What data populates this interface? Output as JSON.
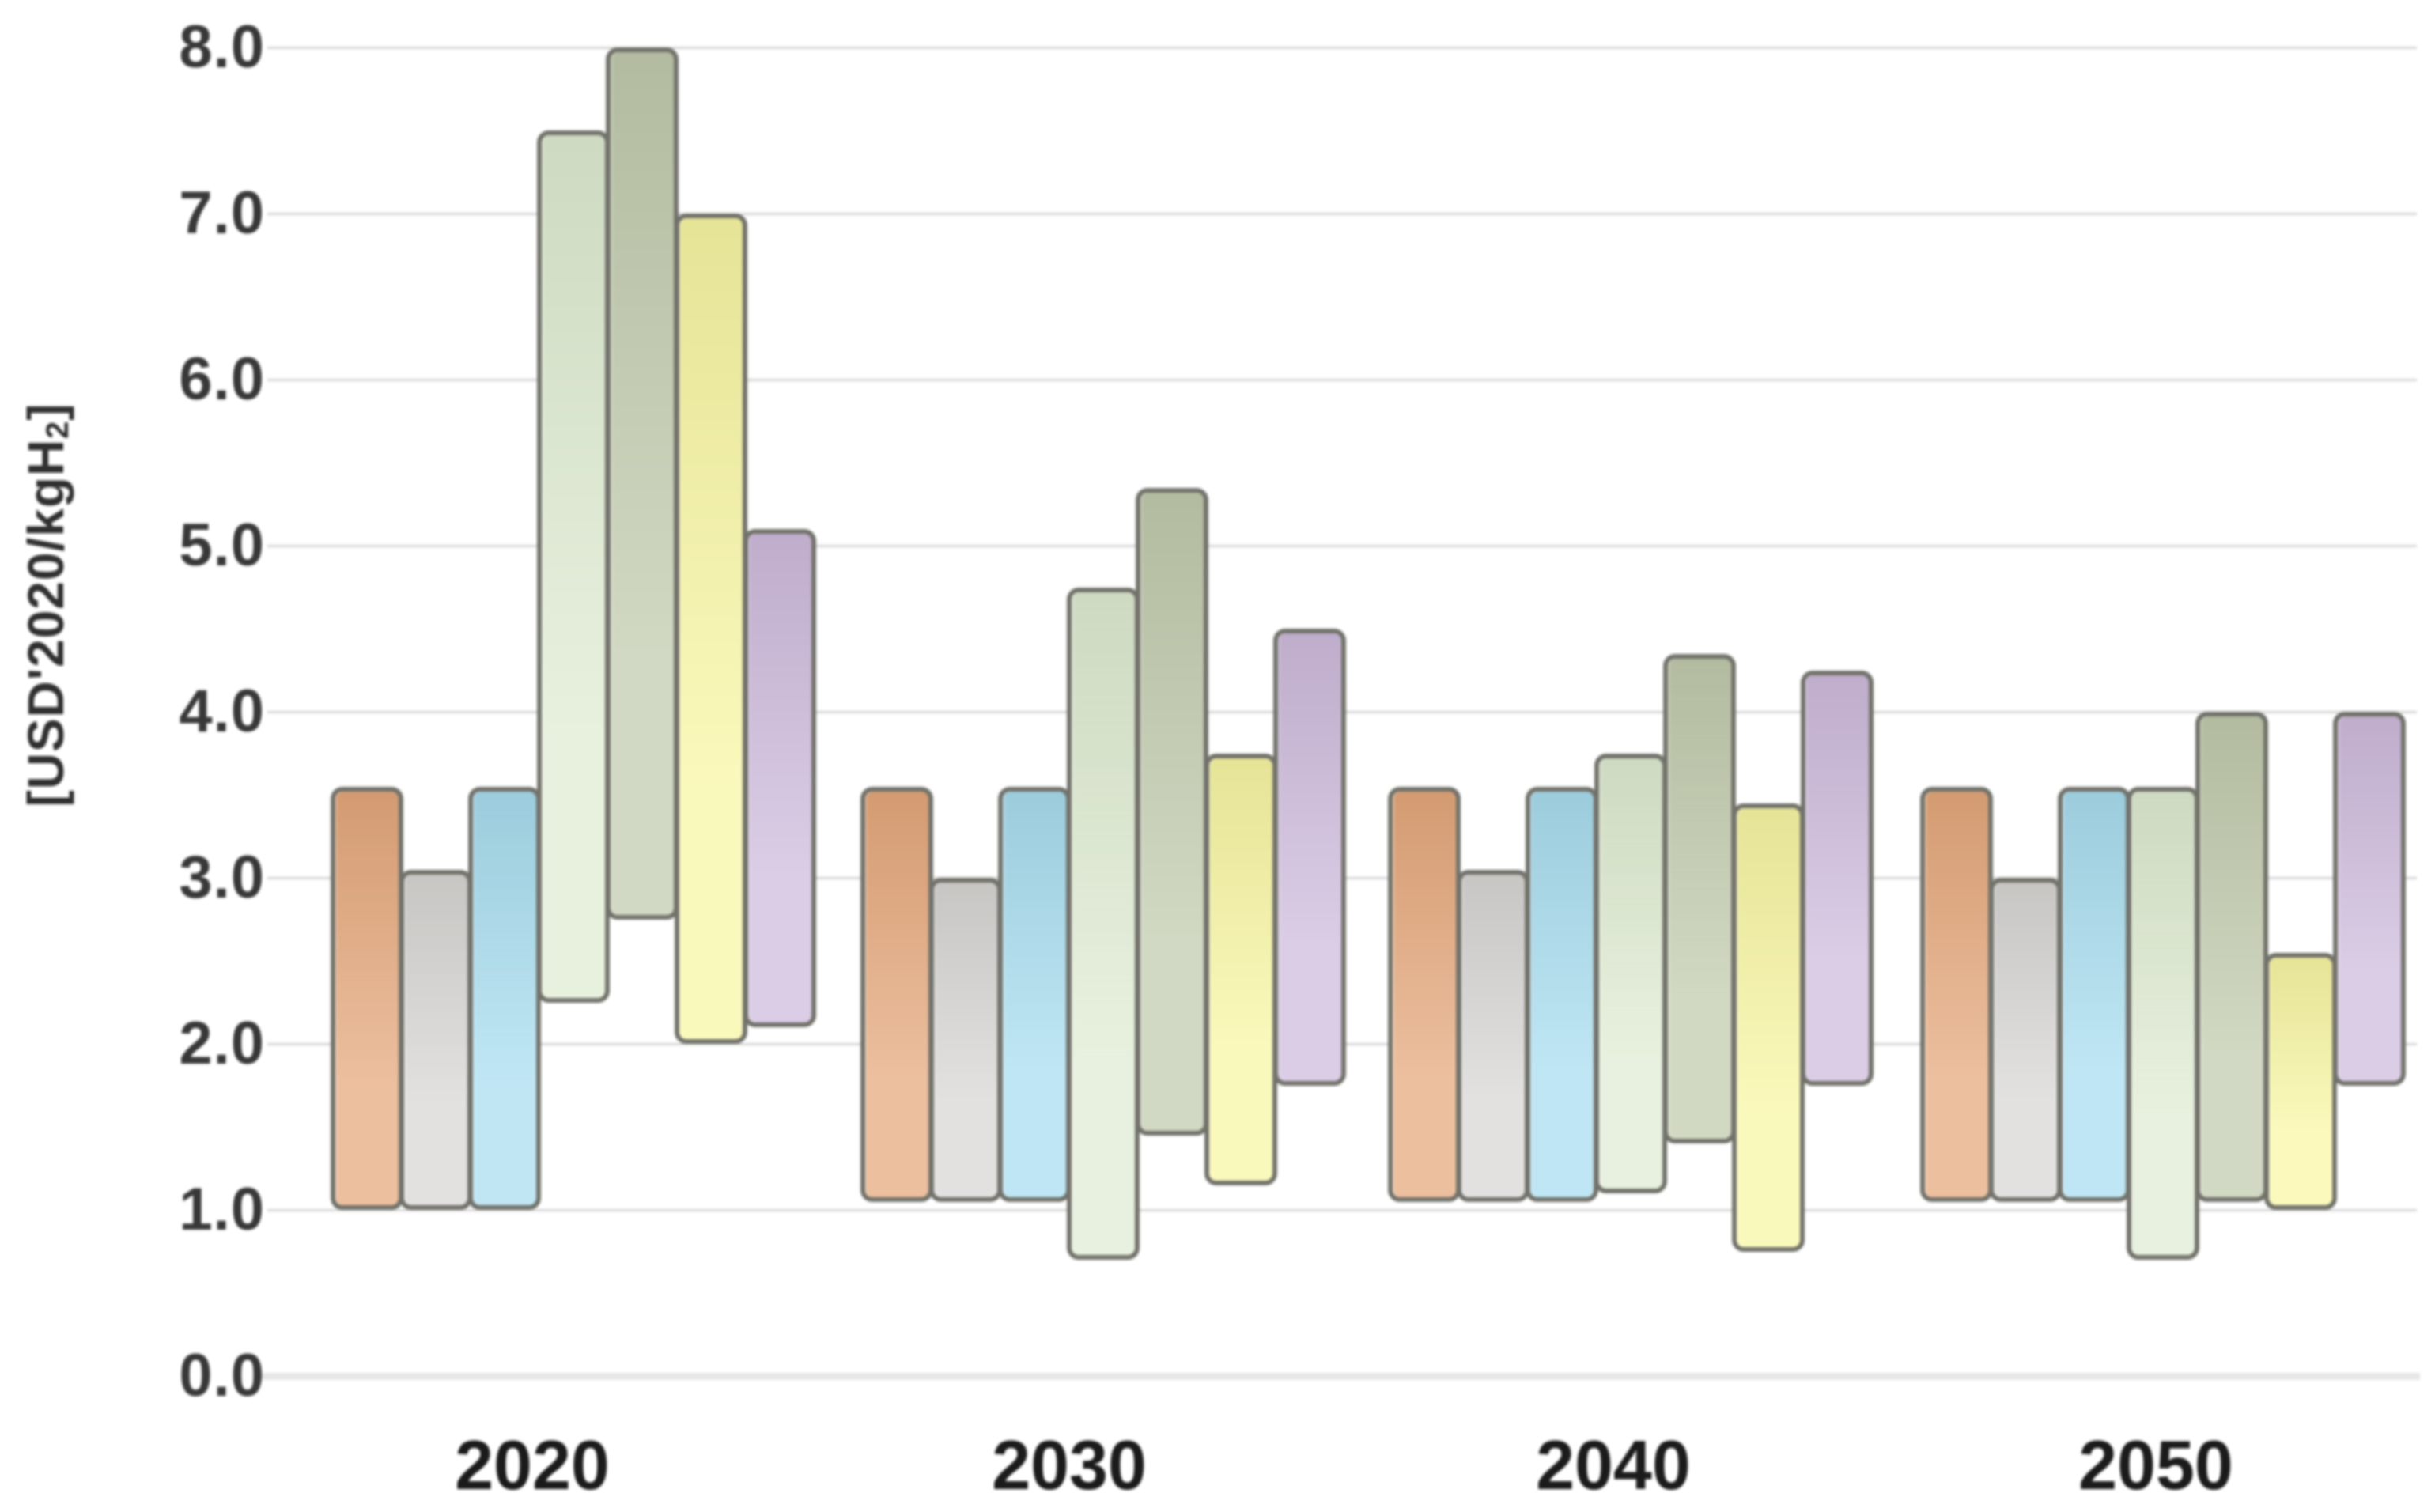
{
  "figure": {
    "background_color": "#ffffff",
    "gridline_color": "#d6d6d6",
    "zero_line_color": "#e7e7e7",
    "bar_border_color": "#72726b",
    "y_tick_color": "#383838",
    "x_label_color": "#1b1b1b"
  },
  "chart_data": {
    "type": "bar",
    "subtype": "floating-range-bars",
    "title": "",
    "xlabel": "",
    "ylabel": "[USD'2020/kgH2]",
    "ylabel_prefix": "[USD'2020/kgH",
    "ylabel_sub": "2",
    "ylabel_suffix": "]",
    "units": "USD'2020 per kg H2",
    "categories": [
      "2020",
      "2030",
      "2040",
      "2050"
    ],
    "ylim": [
      0.0,
      8.0
    ],
    "ytick_values": [
      0,
      1,
      2,
      3,
      4,
      5,
      6,
      7,
      8
    ],
    "ytick_labels": [
      "0.0",
      "1.0",
      "2.0",
      "3.0",
      "4.0",
      "5.0",
      "6.0",
      "7.0",
      "8.0"
    ],
    "grid": "horizontal",
    "legend": "none",
    "series": [
      {
        "name": "orange",
        "color": "#e5a679",
        "ranges": [
          [
            1.0,
            3.55
          ],
          [
            1.05,
            3.55
          ],
          [
            1.05,
            3.55
          ],
          [
            1.05,
            3.55
          ]
        ]
      },
      {
        "name": "grey",
        "color": "#d8d6d4",
        "ranges": [
          [
            1.0,
            3.05
          ],
          [
            1.05,
            3.0
          ],
          [
            1.05,
            3.05
          ],
          [
            1.05,
            3.0
          ]
        ]
      },
      {
        "name": "blue",
        "color": "#a7ddf0",
        "ranges": [
          [
            1.0,
            3.55
          ],
          [
            1.05,
            3.55
          ],
          [
            1.05,
            3.55
          ],
          [
            1.05,
            3.55
          ]
        ]
      },
      {
        "name": "light-green",
        "color": "#dfecd2",
        "ranges": [
          [
            2.25,
            7.5
          ],
          [
            0.7,
            4.75
          ],
          [
            1.1,
            3.75
          ],
          [
            0.7,
            3.55
          ]
        ]
      },
      {
        "name": "green",
        "color": "#c0caac",
        "ranges": [
          [
            2.75,
            8.0
          ],
          [
            1.45,
            5.35
          ],
          [
            1.4,
            4.35
          ],
          [
            1.05,
            4.0
          ]
        ]
      },
      {
        "name": "yellow",
        "color": "#f9f7a2",
        "ranges": [
          [
            2.0,
            7.0
          ],
          [
            1.15,
            3.75
          ],
          [
            0.75,
            3.45
          ],
          [
            1.0,
            2.55
          ]
        ]
      },
      {
        "name": "purple",
        "color": "#cebadd",
        "ranges": [
          [
            2.1,
            5.1
          ],
          [
            1.75,
            4.5
          ],
          [
            1.75,
            4.25
          ],
          [
            1.75,
            4.0
          ]
        ]
      }
    ]
  }
}
